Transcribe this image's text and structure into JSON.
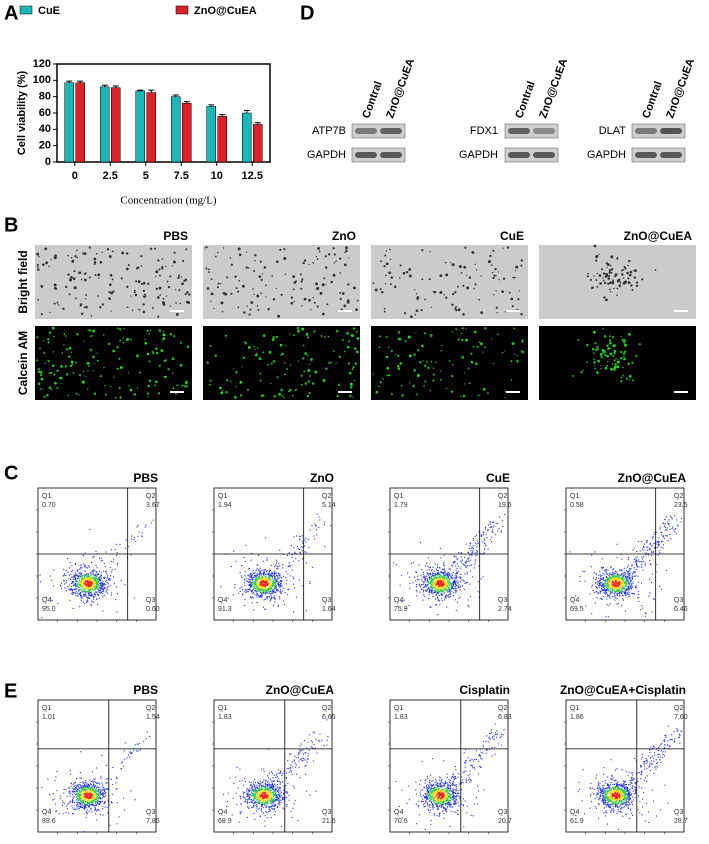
{
  "chart_data": {
    "type": "bar",
    "categories": [
      "0",
      "2.5",
      "5",
      "7.5",
      "10",
      "12.5"
    ],
    "series": [
      {
        "name": "CuE",
        "color": "#1fb5b5",
        "values": [
          97,
          92,
          87,
          80,
          68,
          60
        ],
        "errors": [
          2,
          2,
          1,
          2,
          2,
          3
        ]
      },
      {
        "name": "ZnO@CuEA",
        "color": "#d8232a",
        "values": [
          97,
          91,
          85,
          72,
          56,
          46
        ],
        "errors": [
          2,
          2,
          3,
          2,
          2,
          2
        ]
      }
    ],
    "ylim": [
      0,
      120
    ],
    "yticks": [
      0,
      20,
      40,
      60,
      80,
      100,
      120
    ],
    "ylabel": "Cell viability (%)",
    "xlabel": "Concentration (mg/L)"
  },
  "panel_letters": [
    "A",
    "D",
    "B",
    "C",
    "E"
  ],
  "blots": {
    "lanes": [
      "Contral",
      "ZnO@CuEA"
    ],
    "groups": [
      {
        "target": "ATP7B",
        "control": "GAPDH"
      },
      {
        "target": "FDX1",
        "control": "GAPDH"
      },
      {
        "target": "DLAT",
        "control": "GAPDH"
      }
    ]
  },
  "microscopy": {
    "columns": [
      "PBS",
      "ZnO",
      "CuE",
      "ZnO@CuEA"
    ],
    "rows": [
      "Bright field",
      "Calcein AM"
    ]
  },
  "quadrant_names": [
    "Q1",
    "Q2",
    "Q3",
    "Q4"
  ],
  "flow_c": [
    {
      "title": "PBS",
      "values": [
        "0.70",
        "3.67",
        "0.60",
        "95.0"
      ]
    },
    {
      "title": "ZnO",
      "values": [
        "1.94",
        "5.14",
        "1.64",
        "91.3"
      ]
    },
    {
      "title": "CuE",
      "values": [
        "1.79",
        "19.6",
        "2.74",
        "75.9"
      ]
    },
    {
      "title": "ZnO@CuEA",
      "values": [
        "0.58",
        "23.5",
        "6.46",
        "69.5"
      ]
    }
  ],
  "flow_e": [
    {
      "title": "PBS",
      "values": [
        "1.01",
        "1.54",
        "7.85",
        "89.6"
      ]
    },
    {
      "title": "ZnO@CuEA",
      "values": [
        "1.83",
        "6.65",
        "21.6",
        "69.9"
      ]
    },
    {
      "title": "Cisplatin",
      "values": [
        "1.83",
        "6.83",
        "20.7",
        "70.6"
      ]
    },
    {
      "title": "ZnO@CuEA+Cisplatin",
      "values": [
        "1.86",
        "7.60",
        "28.7",
        "61.9"
      ]
    }
  ]
}
